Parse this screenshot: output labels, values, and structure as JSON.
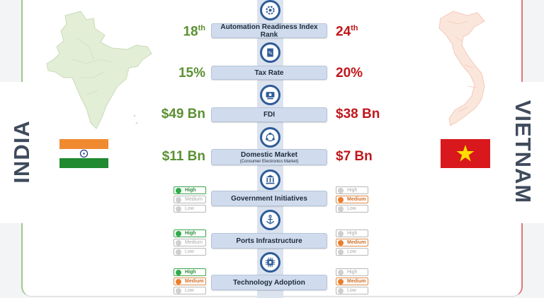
{
  "countries": {
    "india": {
      "name": "INDIA"
    },
    "vietnam": {
      "name": "VIETNAM"
    }
  },
  "metrics": [
    {
      "label": "Automation Readiness Index Rank",
      "icon": "gear-icon",
      "india": {
        "value": "18",
        "suffix": "th"
      },
      "vietnam": {
        "value": "24",
        "suffix": "th"
      }
    },
    {
      "label": "Tax Rate",
      "icon": "tax-document-icon",
      "india": {
        "value": "15%"
      },
      "vietnam": {
        "value": "20%"
      }
    },
    {
      "label": "FDI",
      "icon": "money-icon",
      "india": {
        "value": "$49 Bn"
      },
      "vietnam": {
        "value": "$38 Bn"
      }
    },
    {
      "label": "Domestic Market",
      "sublabel": "(Consumer Electronics Market)",
      "icon": "network-icon",
      "india": {
        "value": "$11 Bn"
      },
      "vietnam": {
        "value": "$7 Bn"
      }
    },
    {
      "label": "Government Initiatives",
      "icon": "government-building-icon",
      "india": {
        "level": "High"
      },
      "vietnam": {
        "level": "Medium"
      }
    },
    {
      "label": "Ports Infrastructure",
      "icon": "anchor-icon",
      "india": {
        "level": "High"
      },
      "vietnam": {
        "level": "Medium"
      }
    },
    {
      "label": "Technology Adoption",
      "icon": "technology-chip-icon",
      "india": {
        "level": "High"
      },
      "vietnam": {
        "level": "Medium"
      }
    }
  ],
  "level_options": [
    "High",
    "Medium",
    "Low"
  ],
  "colors": {
    "india_value": "#5a9133",
    "vietnam_value": "#c0171b",
    "spine": "#dbe3ef",
    "node_ring": "#2f5c98",
    "high": "#2eab4a",
    "medium": "#ea7d2e"
  }
}
